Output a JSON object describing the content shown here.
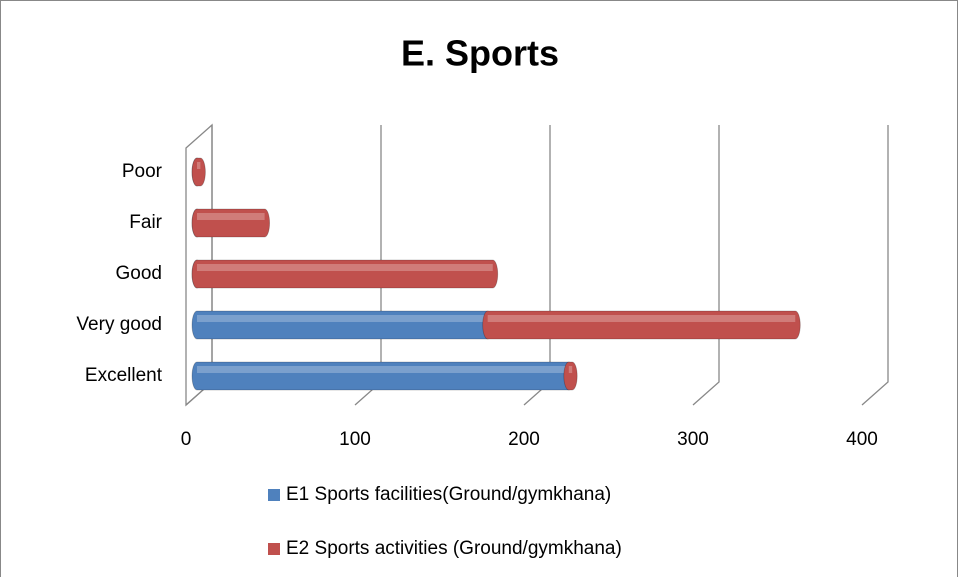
{
  "chart_data": {
    "type": "bar3d_stacked_horizontal",
    "title": "E. Sports",
    "categories": [
      "Excellent",
      "Very good",
      "Good",
      "Fair",
      "Poor"
    ],
    "series": [
      {
        "name": "E1 Sports facilities(Ground/gymkhana)",
        "color": "#4f81bd",
        "values": [
          220,
          172,
          0,
          0,
          0
        ]
      },
      {
        "name": "E2 Sports activities (Ground/gymkhana)",
        "color": "#c0504d",
        "values": [
          2,
          182,
          175,
          40,
          2
        ]
      }
    ],
    "xlim": [
      0,
      400
    ],
    "xticks": [
      0,
      100,
      200,
      300,
      400
    ],
    "grid": true,
    "legend": "bottom"
  }
}
